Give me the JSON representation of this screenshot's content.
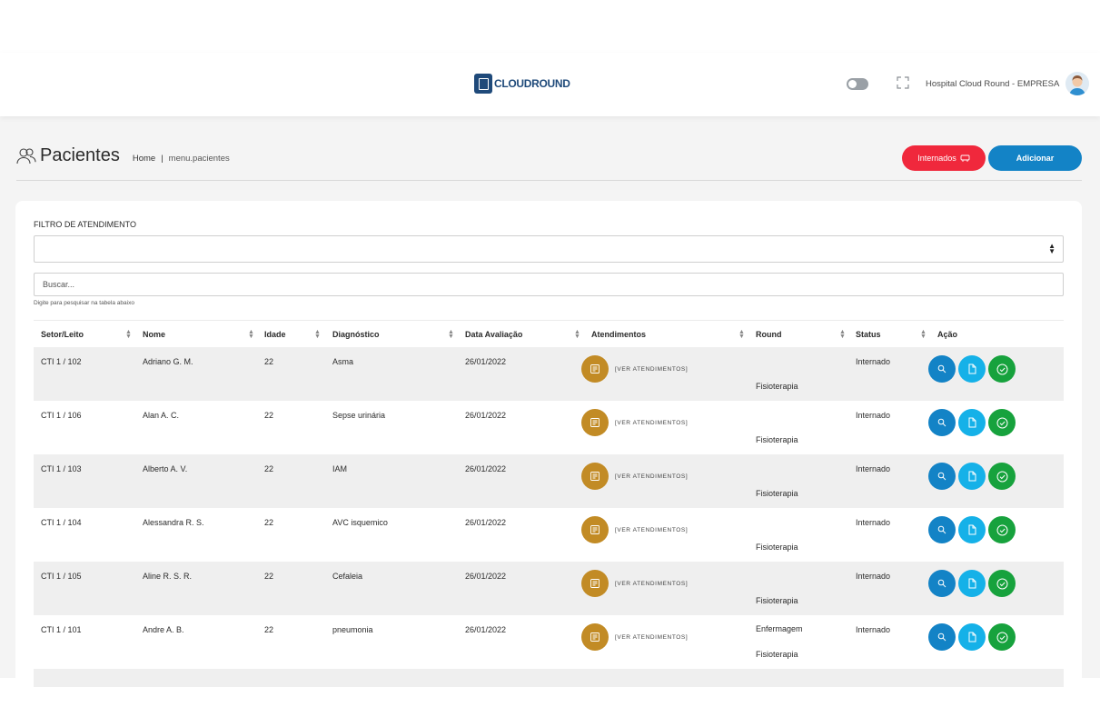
{
  "header": {
    "logo_text": "CLOUDROUND",
    "hospital_name": "Hospital Cloud Round - EMPRESA",
    "icons": [
      "theme-toggle",
      "fullscreen-icon",
      "avatar"
    ]
  },
  "page": {
    "title": "Pacientes",
    "breadcrumb": {
      "home": "Home",
      "separator": "|",
      "current": "menu.pacientes"
    },
    "btn_internados": "Internados",
    "btn_adicionar": "Adicionar"
  },
  "filter": {
    "label": "FILTRO DE ATENDIMENTO",
    "selected": "",
    "search_placeholder": "Buscar...",
    "search_hint": "Digite para pesquisar na tabela abaixo"
  },
  "table": {
    "columns": [
      "Setor/Leito",
      "Nome",
      "Idade",
      "Diagnóstico",
      "Data Avaliação",
      "Atendimentos",
      "Round",
      "Status",
      "Ação"
    ],
    "ver_atendimentos": "[VER ATENDIMENTOS]",
    "rows": [
      {
        "setor": "CTI 1 / 102",
        "nome": "Adriano G. M.",
        "idade": "22",
        "diagnostico": "Asma",
        "data": "26/01/2022",
        "round1": "",
        "round2": "Fisioterapia",
        "status": "Internado"
      },
      {
        "setor": "CTI 1 / 106",
        "nome": "Alan A. C.",
        "idade": "22",
        "diagnostico": "Sepse urinária",
        "data": "26/01/2022",
        "round1": "",
        "round2": "Fisioterapia",
        "status": "Internado"
      },
      {
        "setor": "CTI 1 / 103",
        "nome": "Alberto A. V.",
        "idade": "22",
        "diagnostico": "IAM",
        "data": "26/01/2022",
        "round1": "",
        "round2": "Fisioterapia",
        "status": "Internado"
      },
      {
        "setor": "CTI 1 / 104",
        "nome": "Alessandra R. S.",
        "idade": "22",
        "diagnostico": "AVC isquemico",
        "data": "26/01/2022",
        "round1": "",
        "round2": "Fisioterapia",
        "status": "Internado"
      },
      {
        "setor": "CTI 1 / 105",
        "nome": "Aline R. S. R.",
        "idade": "22",
        "diagnostico": "Cefaleia",
        "data": "26/01/2022",
        "round1": "",
        "round2": "Fisioterapia",
        "status": "Internado"
      },
      {
        "setor": "CTI 1 / 101",
        "nome": "Andre A. B.",
        "idade": "22",
        "diagnostico": "pneumonia",
        "data": "26/01/2022",
        "round1": "Enfermagem",
        "round2": "Fisioterapia",
        "status": "Internado"
      }
    ]
  },
  "colors": {
    "primary": "#1383c6",
    "secondary": "#15b1e8",
    "success": "#17a23d",
    "danger": "#f0283c",
    "atendimento": "#c28b25"
  }
}
